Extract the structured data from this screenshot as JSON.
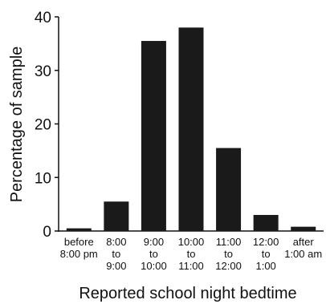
{
  "chart_data": {
    "type": "bar",
    "categories": [
      [
        "before",
        "8:00 pm"
      ],
      [
        "8:00",
        "to",
        "9:00"
      ],
      [
        "9:00",
        "to",
        "10:00"
      ],
      [
        "10:00",
        "to",
        "11:00"
      ],
      [
        "11:00",
        "to",
        "12:00"
      ],
      [
        "12:00",
        "to",
        "1:00"
      ],
      [
        "after",
        "1:00 am"
      ]
    ],
    "values": [
      0.5,
      5.5,
      35.5,
      38,
      15.5,
      3,
      0.8
    ],
    "xlabel": "Reported school night bedtime",
    "ylabel": "Percentage of sample",
    "ylim": [
      0,
      40
    ],
    "yticks": [
      0,
      10,
      20,
      30,
      40
    ],
    "bar_color": "#1a1a1a",
    "grid": false
  }
}
